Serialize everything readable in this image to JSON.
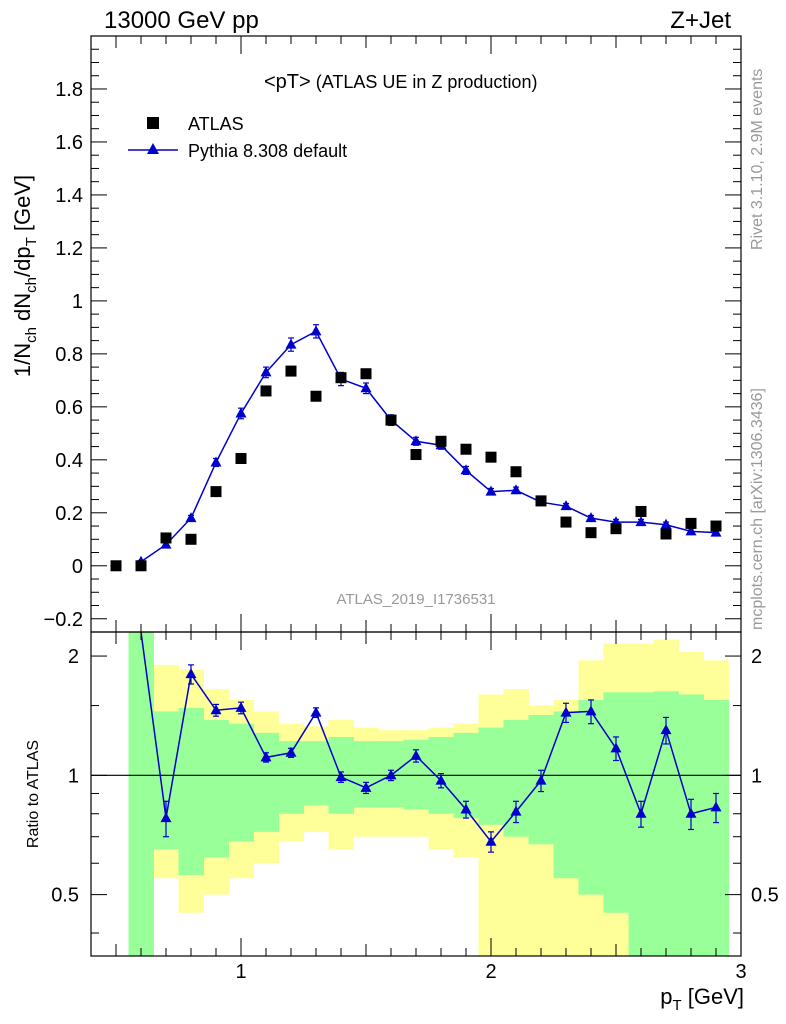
{
  "header": {
    "left": "13000 GeV pp",
    "right": "Z+Jet"
  },
  "side": {
    "rivet": "Rivet 3.1.10,  2.9M events",
    "mcplots": "mcplots.cern.ch [arXiv:1306.3436]"
  },
  "main_title": {
    "main": "<pT>",
    "sub": " (ATLAS UE in Z production)"
  },
  "ylabel_top": {
    "p1": "1/N",
    "s1": "ch",
    "p2": " dN",
    "s2": "ch",
    "p3": "/dp",
    "s3": "T",
    "p4": " [GeV]"
  },
  "ylabel_bottom": "Ratio to ATLAS",
  "xlabel": {
    "p1": "p",
    "s1": "T",
    "p2": " [GeV]"
  },
  "analysis_id": "ATLAS_2019_I1736531",
  "legend": [
    {
      "label": "ATLAS",
      "marker": "square",
      "color": "#000000"
    },
    {
      "label": "Pythia 8.308 default",
      "marker": "triangle",
      "color": "#0000cc"
    }
  ],
  "colors": {
    "data": "#000000",
    "mc": "#0000cc",
    "band_inner": "#99ff99",
    "band_outer": "#ffff99"
  },
  "chart_data": [
    {
      "type": "scatter",
      "title": "<pT> (ATLAS UE in Z production)",
      "xlabel": "p_T [GeV]",
      "ylabel": "1/N_ch dN_ch/dp_T [GeV]",
      "xlim": [
        0.4,
        3.0
      ],
      "ylim": [
        -0.25,
        2.0
      ],
      "yticks": [
        "-0.2",
        "0",
        "0.2",
        "0.4",
        "0.6",
        "0.8",
        "1",
        "1.2",
        "1.4",
        "1.6",
        "1.8"
      ],
      "xticks": [
        "1",
        "2",
        "3"
      ],
      "legend_position": "top-left",
      "series": [
        {
          "name": "ATLAS",
          "points": [
            {
              "x": 0.5,
              "y": 0.0
            },
            {
              "x": 0.6,
              "y": 0.0
            },
            {
              "x": 0.7,
              "y": 0.105
            },
            {
              "x": 0.8,
              "y": 0.1
            },
            {
              "x": 0.9,
              "y": 0.28
            },
            {
              "x": 1.0,
              "y": 0.405
            },
            {
              "x": 1.1,
              "y": 0.66
            },
            {
              "x": 1.2,
              "y": 0.735
            },
            {
              "x": 1.3,
              "y": 0.64
            },
            {
              "x": 1.4,
              "y": 0.71
            },
            {
              "x": 1.5,
              "y": 0.725
            },
            {
              "x": 1.6,
              "y": 0.55
            },
            {
              "x": 1.7,
              "y": 0.42
            },
            {
              "x": 1.8,
              "y": 0.47
            },
            {
              "x": 1.9,
              "y": 0.44
            },
            {
              "x": 2.0,
              "y": 0.41
            },
            {
              "x": 2.1,
              "y": 0.355
            },
            {
              "x": 2.2,
              "y": 0.245
            },
            {
              "x": 2.3,
              "y": 0.165
            },
            {
              "x": 2.4,
              "y": 0.125
            },
            {
              "x": 2.5,
              "y": 0.14
            },
            {
              "x": 2.6,
              "y": 0.205
            },
            {
              "x": 2.7,
              "y": 0.12
            },
            {
              "x": 2.8,
              "y": 0.16
            },
            {
              "x": 2.9,
              "y": 0.15
            }
          ]
        },
        {
          "name": "Pythia 8.308 default",
          "points": [
            {
              "x": 0.6,
              "y": 0.015,
              "err": 0.005
            },
            {
              "x": 0.7,
              "y": 0.08,
              "err": 0.01
            },
            {
              "x": 0.8,
              "y": 0.18,
              "err": 0.01
            },
            {
              "x": 0.9,
              "y": 0.39,
              "err": 0.015
            },
            {
              "x": 1.0,
              "y": 0.575,
              "err": 0.02
            },
            {
              "x": 1.1,
              "y": 0.73,
              "err": 0.02
            },
            {
              "x": 1.2,
              "y": 0.835,
              "err": 0.025
            },
            {
              "x": 1.3,
              "y": 0.885,
              "err": 0.025
            },
            {
              "x": 1.4,
              "y": 0.705,
              "err": 0.025
            },
            {
              "x": 1.5,
              "y": 0.67,
              "err": 0.02
            },
            {
              "x": 1.6,
              "y": 0.55,
              "err": 0.02
            },
            {
              "x": 1.7,
              "y": 0.47,
              "err": 0.015
            },
            {
              "x": 1.8,
              "y": 0.455,
              "err": 0.015
            },
            {
              "x": 1.9,
              "y": 0.36,
              "err": 0.015
            },
            {
              "x": 2.0,
              "y": 0.28,
              "err": 0.012
            },
            {
              "x": 2.1,
              "y": 0.285,
              "err": 0.012
            },
            {
              "x": 2.2,
              "y": 0.24,
              "err": 0.01
            },
            {
              "x": 2.3,
              "y": 0.225,
              "err": 0.01
            },
            {
              "x": 2.4,
              "y": 0.18,
              "err": 0.01
            },
            {
              "x": 2.5,
              "y": 0.165,
              "err": 0.01
            },
            {
              "x": 2.6,
              "y": 0.165,
              "err": 0.01
            },
            {
              "x": 2.7,
              "y": 0.155,
              "err": 0.01
            },
            {
              "x": 2.8,
              "y": 0.13,
              "err": 0.01
            },
            {
              "x": 2.9,
              "y": 0.125,
              "err": 0.01
            }
          ]
        }
      ]
    },
    {
      "type": "line",
      "ylabel": "Ratio to ATLAS",
      "xlabel": "p_T [GeV]",
      "xlim": [
        0.4,
        3.0
      ],
      "ylim": [
        0.35,
        2.3
      ],
      "yscale": "log",
      "yticks": [
        "0.5",
        "1",
        "2"
      ],
      "reference_line": 1.0,
      "bands": {
        "bin_edges": [
          0.55,
          0.65,
          0.75,
          0.85,
          0.95,
          1.05,
          1.15,
          1.25,
          1.35,
          1.45,
          1.55,
          1.65,
          1.75,
          1.85,
          1.95,
          2.05,
          2.15,
          2.25,
          2.35,
          2.45,
          2.55,
          2.65,
          2.75,
          2.85,
          2.95
        ],
        "inner_low": [
          0.35,
          0.65,
          0.56,
          0.62,
          0.68,
          0.72,
          0.8,
          0.84,
          0.8,
          0.83,
          0.83,
          0.82,
          0.8,
          0.78,
          0.75,
          0.7,
          0.67,
          0.55,
          0.5,
          0.45,
          0.35,
          0.35,
          0.35,
          0.35
        ],
        "inner_high": [
          2.3,
          1.45,
          1.48,
          1.38,
          1.35,
          1.28,
          1.22,
          1.22,
          1.25,
          1.22,
          1.22,
          1.23,
          1.25,
          1.28,
          1.32,
          1.38,
          1.42,
          1.45,
          1.55,
          1.62,
          1.62,
          1.63,
          1.6,
          1.55
        ],
        "outer_low": [
          0.35,
          0.55,
          0.45,
          0.5,
          0.55,
          0.6,
          0.68,
          0.72,
          0.65,
          0.7,
          0.7,
          0.7,
          0.65,
          0.62,
          0.35,
          0.35,
          0.35,
          0.35,
          0.35,
          0.35,
          0.35,
          0.35,
          0.35,
          0.35
        ],
        "outer_high": [
          2.3,
          1.9,
          1.85,
          1.65,
          1.55,
          1.45,
          1.35,
          1.33,
          1.38,
          1.32,
          1.3,
          1.3,
          1.32,
          1.35,
          1.6,
          1.65,
          1.5,
          1.55,
          1.95,
          2.15,
          2.15,
          2.2,
          2.05,
          1.95
        ]
      },
      "series": [
        {
          "name": "Pythia 8.308 default",
          "points": [
            {
              "x": 0.6,
              "y": 2.3
            },
            {
              "x": 0.7,
              "y": 0.78,
              "err": 0.08
            },
            {
              "x": 0.8,
              "y": 1.8,
              "err": 0.1
            },
            {
              "x": 0.9,
              "y": 1.46,
              "err": 0.05
            },
            {
              "x": 1.0,
              "y": 1.48,
              "err": 0.05
            },
            {
              "x": 1.1,
              "y": 1.11,
              "err": 0.03
            },
            {
              "x": 1.2,
              "y": 1.14,
              "err": 0.03
            },
            {
              "x": 1.3,
              "y": 1.44,
              "err": 0.04
            },
            {
              "x": 1.4,
              "y": 0.99,
              "err": 0.03
            },
            {
              "x": 1.5,
              "y": 0.93,
              "err": 0.03
            },
            {
              "x": 1.6,
              "y": 1.0,
              "err": 0.03
            },
            {
              "x": 1.7,
              "y": 1.12,
              "err": 0.04
            },
            {
              "x": 1.8,
              "y": 0.97,
              "err": 0.04
            },
            {
              "x": 1.9,
              "y": 0.82,
              "err": 0.04
            },
            {
              "x": 2.0,
              "y": 0.68,
              "err": 0.04
            },
            {
              "x": 2.1,
              "y": 0.81,
              "err": 0.05
            },
            {
              "x": 2.2,
              "y": 0.97,
              "err": 0.06
            },
            {
              "x": 2.3,
              "y": 1.44,
              "err": 0.08
            },
            {
              "x": 2.4,
              "y": 1.45,
              "err": 0.1
            },
            {
              "x": 2.5,
              "y": 1.17,
              "err": 0.08
            },
            {
              "x": 2.6,
              "y": 0.8,
              "err": 0.06
            },
            {
              "x": 2.7,
              "y": 1.3,
              "err": 0.1
            },
            {
              "x": 2.8,
              "y": 0.8,
              "err": 0.07
            },
            {
              "x": 2.9,
              "y": 0.83,
              "err": 0.07
            }
          ]
        }
      ]
    }
  ]
}
